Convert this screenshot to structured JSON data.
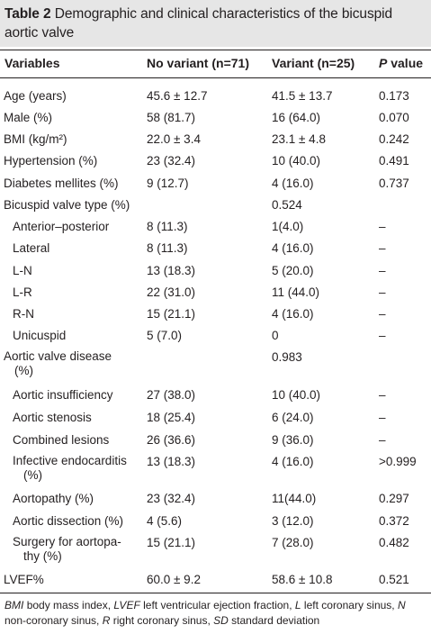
{
  "table": {
    "label": "Table 2",
    "caption": "Demographic and clinical characteristics of the bicuspid aortic valve",
    "headers": {
      "variables": "Variables",
      "no_variant": "No variant (n=71)",
      "variant": "Variant (n=25)",
      "p_value_italic": "P",
      "p_value_rest": "value"
    },
    "rows": [
      {
        "label": "Age (years)",
        "no_variant": "45.6 ± 12.7",
        "variant": "41.5 ± 13.7",
        "p": "0.173"
      },
      {
        "label": "Male (%)",
        "no_variant": "58 (81.7)",
        "variant": "16 (64.0)",
        "p": "0.070"
      },
      {
        "label": "BMI (kg/m²)",
        "no_variant": "22.0 ± 3.4",
        "variant": "23.1 ± 4.8",
        "p": "0.242"
      },
      {
        "label": "Hypertension (%)",
        "no_variant": "23 (32.4)",
        "variant": "10 (40.0)",
        "p": "0.491"
      },
      {
        "label": "Diabetes mellites (%)",
        "no_variant": "9 (12.7)",
        "variant": "4 (16.0)",
        "p": "0.737"
      },
      {
        "label": "Bicuspid valve type (%)",
        "no_variant": "",
        "variant": "0.524",
        "p": ""
      },
      {
        "label": "Anterior–posterior",
        "no_variant": "8 (11.3)",
        "variant": "1(4.0)",
        "p": "–"
      },
      {
        "label": "Lateral",
        "no_variant": "8 (11.3)",
        "variant": "4 (16.0)",
        "p": "–"
      },
      {
        "label": "L-N",
        "no_variant": "13 (18.3)",
        "variant": "5 (20.0)",
        "p": "–"
      },
      {
        "label": "L-R",
        "no_variant": "22 (31.0)",
        "variant": "11 (44.0)",
        "p": "–"
      },
      {
        "label": "R-N",
        "no_variant": "15 (21.1)",
        "variant": "4 (16.0)",
        "p": "–"
      },
      {
        "label": "Unicuspid",
        "no_variant": "5 (7.0)",
        "variant": "0",
        "p": "–"
      },
      {
        "label": "Aortic valve disease (%)",
        "no_variant": "",
        "variant": "0.983",
        "p": ""
      },
      {
        "label": "Aortic insufficiency",
        "no_variant": "27 (38.0)",
        "variant": "10 (40.0)",
        "p": "–"
      },
      {
        "label": "Aortic stenosis",
        "no_variant": "18 (25.4)",
        "variant": "6 (24.0)",
        "p": "–"
      },
      {
        "label": "Combined lesions",
        "no_variant": "26 (36.6)",
        "variant": "9 (36.0)",
        "p": "–"
      },
      {
        "label": "Infective endocarditis (%)",
        "no_variant": "13 (18.3)",
        "variant": "4 (16.0)",
        "p": ">0.999"
      },
      {
        "label": "Aortopathy (%)",
        "no_variant": "23 (32.4)",
        "variant": "11(44.0)",
        "p": "0.297"
      },
      {
        "label": "Aortic dissection (%)",
        "no_variant": "4 (5.6)",
        "variant": "3 (12.0)",
        "p": "0.372"
      },
      {
        "label": "Surgery for aortopathy (%)",
        "no_variant": "15 (21.1)",
        "variant": "7 (28.0)",
        "p": "0.482"
      },
      {
        "label": "LVEF%",
        "no_variant": "60.0 ± 9.2",
        "variant": "58.6 ± 10.8",
        "p": "0.521"
      }
    ],
    "footnote": {
      "bmi_abbr": "BMI",
      "bmi_def": "body mass index,",
      "lvef_abbr": "LVEF",
      "lvef_def": "left ventricular ejection fraction,",
      "l_abbr": "L",
      "l_def": "left coronary sinus,",
      "n_abbr": "N",
      "n_def": "non-coronary sinus,",
      "r_abbr": "R",
      "r_def": "right coronary sinus,",
      "sd_abbr": "SD",
      "sd_def": "standard deviation"
    }
  }
}
